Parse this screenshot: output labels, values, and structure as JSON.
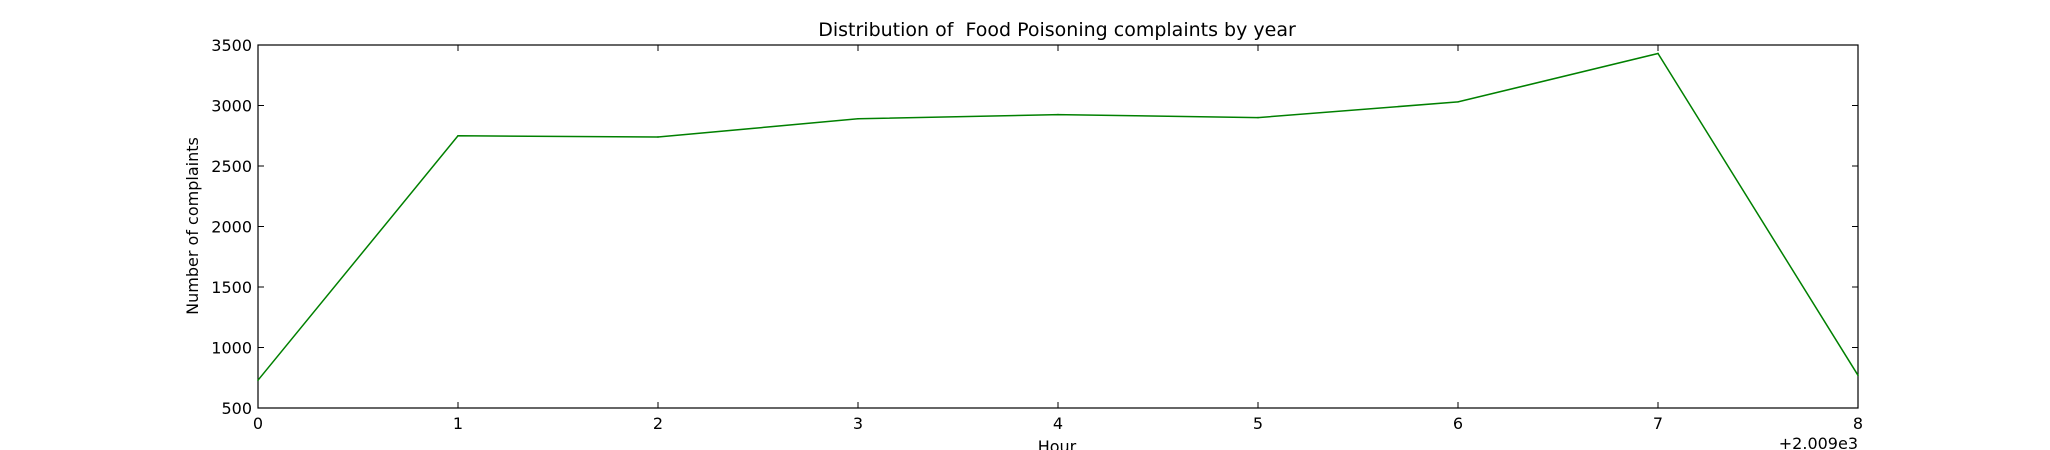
{
  "chart_data": {
    "type": "line",
    "title": "Distribution of  Food Poisoning complaints by year",
    "xlabel": "Hour",
    "ylabel": "Number of complaints",
    "x_offset_label": "+2.009e3",
    "xlim": [
      0,
      8
    ],
    "ylim": [
      500,
      3500
    ],
    "xticks": [
      "0",
      "1",
      "2",
      "3",
      "4",
      "5",
      "6",
      "7",
      "8"
    ],
    "yticks": [
      "500",
      "1000",
      "1500",
      "2000",
      "2500",
      "3000",
      "3500"
    ],
    "grid": false,
    "series": [
      {
        "color": "#008000",
        "x": [
          0,
          1,
          2,
          3,
          4,
          5,
          6,
          7,
          8
        ],
        "y": [
          730,
          2750,
          2740,
          2890,
          2925,
          2900,
          3030,
          3430,
          770
        ]
      }
    ]
  }
}
